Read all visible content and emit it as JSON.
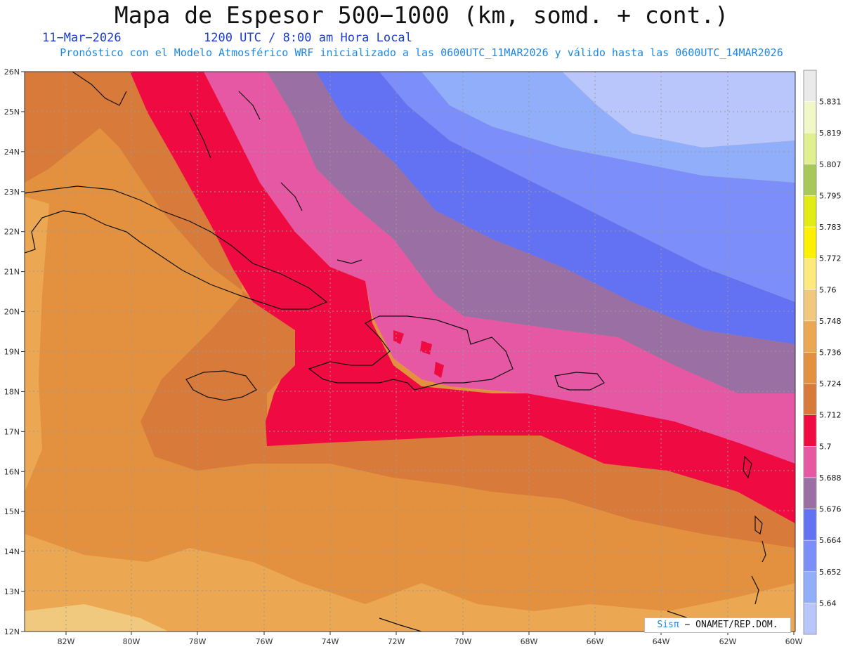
{
  "header": {
    "title": "Mapa de Espesor 500−1000 (km, somd. + cont.)",
    "date": "11−Mar−2026",
    "time": "1200 UTC / 8:00 am Hora Local",
    "subtitle": "Pronóstico con el Modelo Atmosférico WRF inicializado a las 0600UTC_11MAR2026 y válido hasta las  0600UTC_14MAR2026"
  },
  "axes": {
    "lat_labels": [
      "26N",
      "25N",
      "24N",
      "23N",
      "22N",
      "21N",
      "20N",
      "19N",
      "18N",
      "17N",
      "16N",
      "15N",
      "14N",
      "13N",
      "12N"
    ],
    "lon_labels": [
      "82W",
      "80W",
      "78W",
      "76W",
      "74W",
      "72W",
      "70W",
      "68W",
      "66W",
      "64W",
      "62W",
      "60W"
    ],
    "lat_range": [
      12,
      26
    ],
    "lon_range": [
      -83.2,
      -60
    ]
  },
  "legend": {
    "ticks": [
      "5.64",
      "5.652",
      "5.664",
      "5.676",
      "5.688",
      "5.7",
      "5.712",
      "5.724",
      "5.736",
      "5.748",
      "5.76",
      "5.772",
      "5.783",
      "5.795",
      "5.807",
      "5.819",
      "5.831"
    ],
    "colors": [
      "#b9c6fb",
      "#90aefa",
      "#7b8ef9",
      "#6272f2",
      "#9a6fa3",
      "#e657a4",
      "#ef0a42",
      "#d87a3a",
      "#e3913f",
      "#eba752",
      "#f1c97e",
      "#fde97c",
      "#fdf000",
      "#e2ec12",
      "#a8c95a",
      "#e0f08e",
      "#f1f7c6",
      "#eaeaea"
    ]
  },
  "credit": {
    "sis": "Sisπ",
    "rest": "− ONAMET/REP.DOM."
  }
}
